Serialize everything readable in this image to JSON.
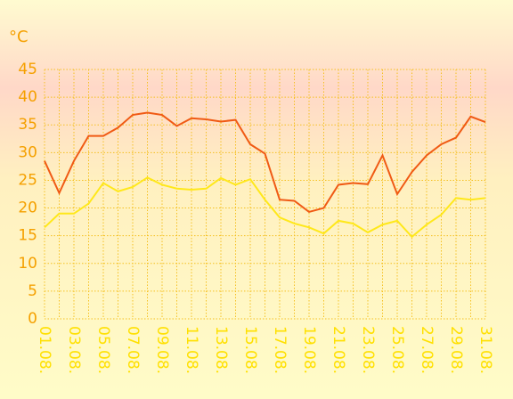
{
  "chart_data": {
    "type": "line",
    "y_label": "°C",
    "categories": [
      "01.08.",
      null,
      "03.08.",
      null,
      "05.08.",
      null,
      "07.08.",
      null,
      "09.08.",
      null,
      "11.08.",
      null,
      "13.08.",
      null,
      "15.08.",
      null,
      "17.08.",
      null,
      "19.08.",
      null,
      "21.08.",
      null,
      "23.08.",
      null,
      "25.08.",
      null,
      "27.08.",
      null,
      "29.08.",
      null,
      "31.08."
    ],
    "series": [
      {
        "color": "#f05a14",
        "values": [
          28.5,
          22.7,
          28.5,
          33,
          33,
          34.5,
          36.8,
          37.2,
          36.8,
          34.8,
          36.2,
          36,
          35.6,
          35.9,
          31.5,
          29.8,
          21.5,
          21.3,
          19.3,
          20,
          24.2,
          24.5,
          24.3,
          29.5,
          22.5,
          26.5,
          29.5,
          31.5,
          32.7,
          36.5,
          35.5
        ]
      },
      {
        "color": "#ffe81a",
        "values": [
          16.5,
          19,
          19,
          20.8,
          24.5,
          23,
          23.8,
          25.5,
          24.2,
          23.5,
          23.3,
          23.5,
          25.4,
          24.2,
          25.2,
          21.5,
          18.3,
          17.2,
          16.5,
          15.4,
          17.7,
          17.2,
          15.6,
          17,
          17.7,
          14.8,
          17,
          18.8,
          21.8,
          21.5,
          21.8
        ]
      }
    ],
    "ylim": [
      0,
      45
    ],
    "yticks": [
      0,
      5,
      10,
      15,
      20,
      25,
      30,
      35,
      40,
      45
    ],
    "grid": true
  }
}
